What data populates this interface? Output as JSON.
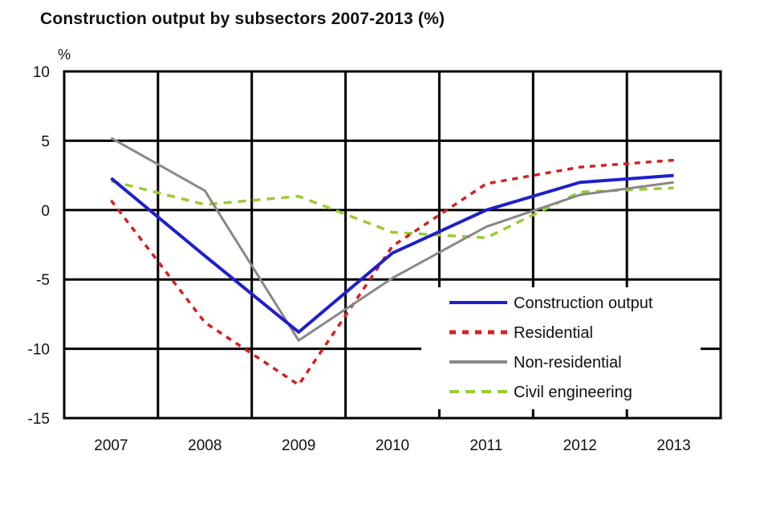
{
  "chart_data": {
    "type": "line",
    "title": "Construction output by subsectors 2007-2013 (%)",
    "ylabel": "%",
    "xlabel": "",
    "categories": [
      "2007",
      "2008",
      "2009",
      "2010",
      "2011",
      "2012",
      "2013"
    ],
    "ylim": [
      -15,
      10
    ],
    "yticks": [
      10,
      5,
      0,
      -5,
      -10,
      -15
    ],
    "grid": true,
    "legend_position": "bottom-right",
    "series": [
      {
        "name": "Construction output",
        "color": "#1f1fcc",
        "style": "solid",
        "values": [
          2.3,
          -3.3,
          -8.8,
          -3.1,
          0.0,
          2.0,
          2.5
        ]
      },
      {
        "name": "Residential",
        "color": "#d42020",
        "style": "dotted",
        "values": [
          0.7,
          -8.1,
          -12.6,
          -2.6,
          1.9,
          3.1,
          3.6
        ]
      },
      {
        "name": "Non-residential",
        "color": "#888888",
        "style": "solid",
        "values": [
          5.2,
          1.4,
          -9.4,
          -4.9,
          -1.2,
          1.1,
          2.0
        ]
      },
      {
        "name": "Civil engineering",
        "color": "#99cc33",
        "style": "dashed",
        "values": [
          2.1,
          0.4,
          1.0,
          -1.6,
          -2.0,
          1.3,
          1.6
        ]
      }
    ]
  }
}
